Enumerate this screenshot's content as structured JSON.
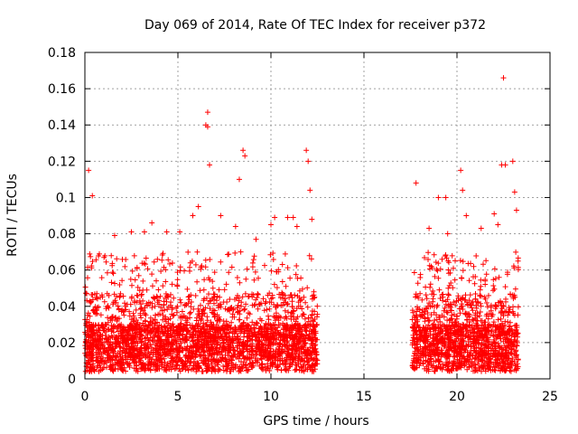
{
  "chart_data": {
    "type": "scatter",
    "title": "Day 069 of 2014, Rate Of TEC Index for receiver p372",
    "xlabel": "GPS time / hours",
    "ylabel": "ROTI / TECUs",
    "xlim": [
      0,
      25
    ],
    "ylim": [
      0,
      0.18
    ],
    "xticks": [
      "0",
      "5",
      "10",
      "15",
      "20",
      "25"
    ],
    "yticks": [
      "0",
      "0.02",
      "0.04",
      "0.06",
      "0.08",
      "0.1",
      "0.12",
      "0.14",
      "0.16",
      "0.18"
    ],
    "grid": true,
    "marker": "plus",
    "color": "#ff0000",
    "data_gap_hours": [
      12.5,
      17.6
    ],
    "series": [
      {
        "name": "ROTI",
        "x": [
          0.1,
          0.2,
          0.4,
          1.6,
          2.5,
          3.2,
          3.6,
          4.4,
          5.1,
          5.8,
          6.1,
          6.5,
          6.6,
          6.6,
          6.7,
          7.3,
          8.1,
          8.3,
          8.5,
          8.6,
          9.2,
          10.0,
          10.2,
          10.9,
          11.2,
          11.4,
          11.9,
          12.0,
          12.1,
          12.2,
          17.8,
          18.5,
          19.0,
          19.4,
          19.5,
          20.2,
          20.3,
          20.5,
          21.3,
          22.0,
          22.2,
          22.4,
          22.5,
          22.6,
          23.0,
          23.1,
          23.2
        ],
        "y": [
          0.047,
          0.115,
          0.101,
          0.079,
          0.081,
          0.081,
          0.086,
          0.081,
          0.081,
          0.09,
          0.095,
          0.14,
          0.147,
          0.139,
          0.118,
          0.09,
          0.084,
          0.11,
          0.126,
          0.123,
          0.077,
          0.085,
          0.089,
          0.089,
          0.089,
          0.084,
          0.126,
          0.12,
          0.104,
          0.088,
          0.108,
          0.083,
          0.1,
          0.1,
          0.08,
          0.115,
          0.104,
          0.09,
          0.083,
          0.091,
          0.085,
          0.118,
          0.166,
          0.118,
          0.12,
          0.103,
          0.093
        ]
      }
    ]
  }
}
